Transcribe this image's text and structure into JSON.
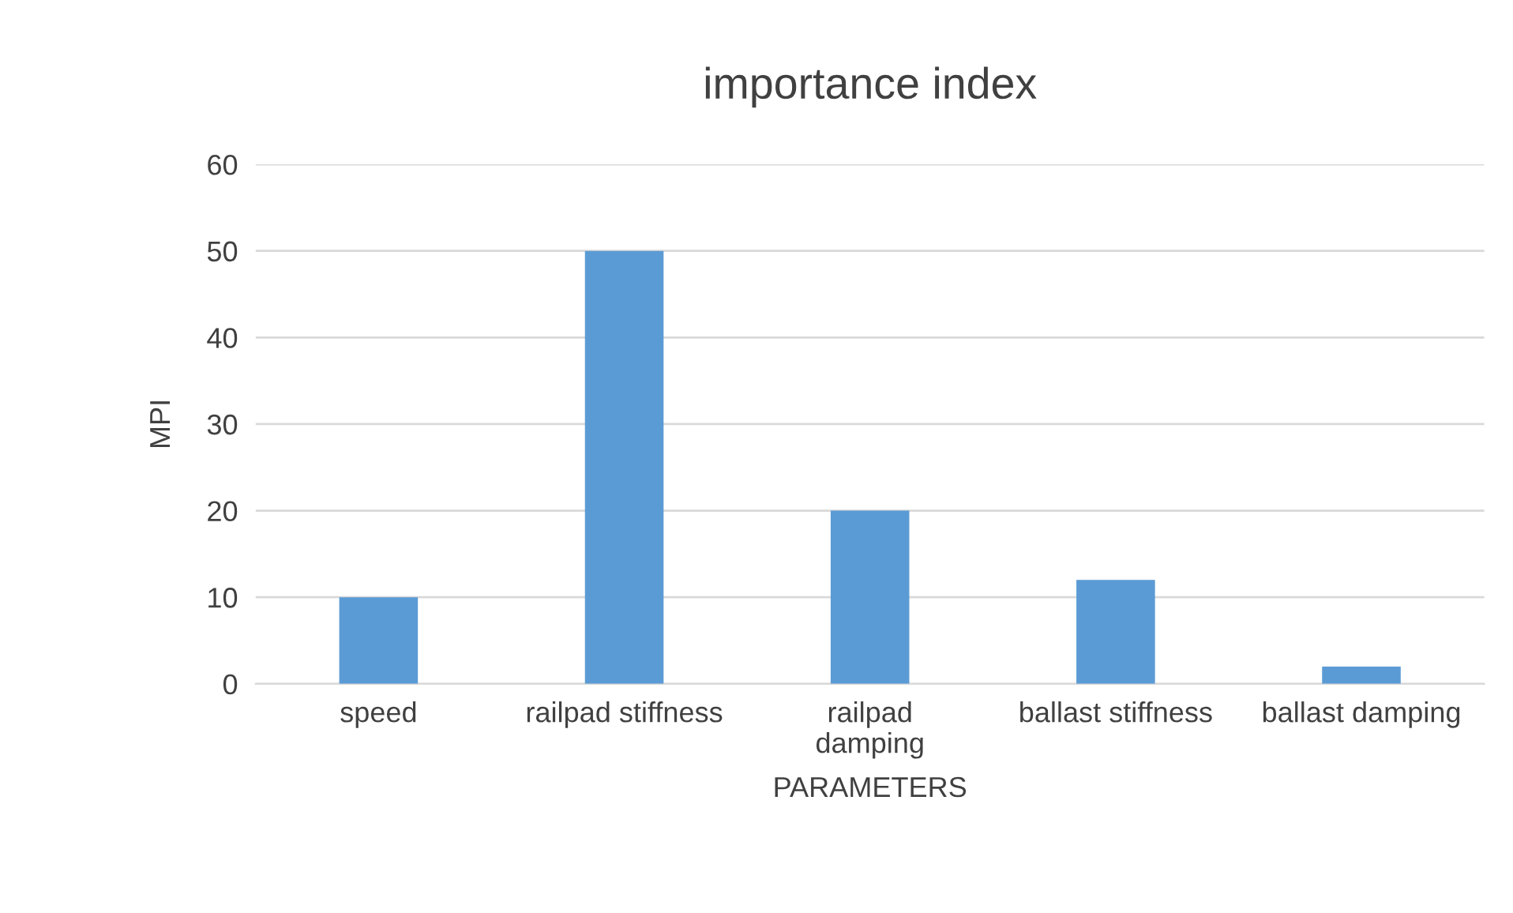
{
  "chart_data": {
    "type": "bar",
    "title": "importance index",
    "xlabel": "PARAMETERS",
    "ylabel": "MPI",
    "categories": [
      "speed",
      "railpad stiffness",
      "railpad\ndamping",
      "ballast stiffness",
      "ballast damping"
    ],
    "values": [
      10,
      50,
      20,
      12,
      2
    ],
    "color": "#5b9bd5",
    "ylim": [
      0,
      60
    ],
    "yticks": [
      0,
      10,
      20,
      30,
      40,
      50,
      60
    ],
    "grid": "y",
    "legend": false
  }
}
